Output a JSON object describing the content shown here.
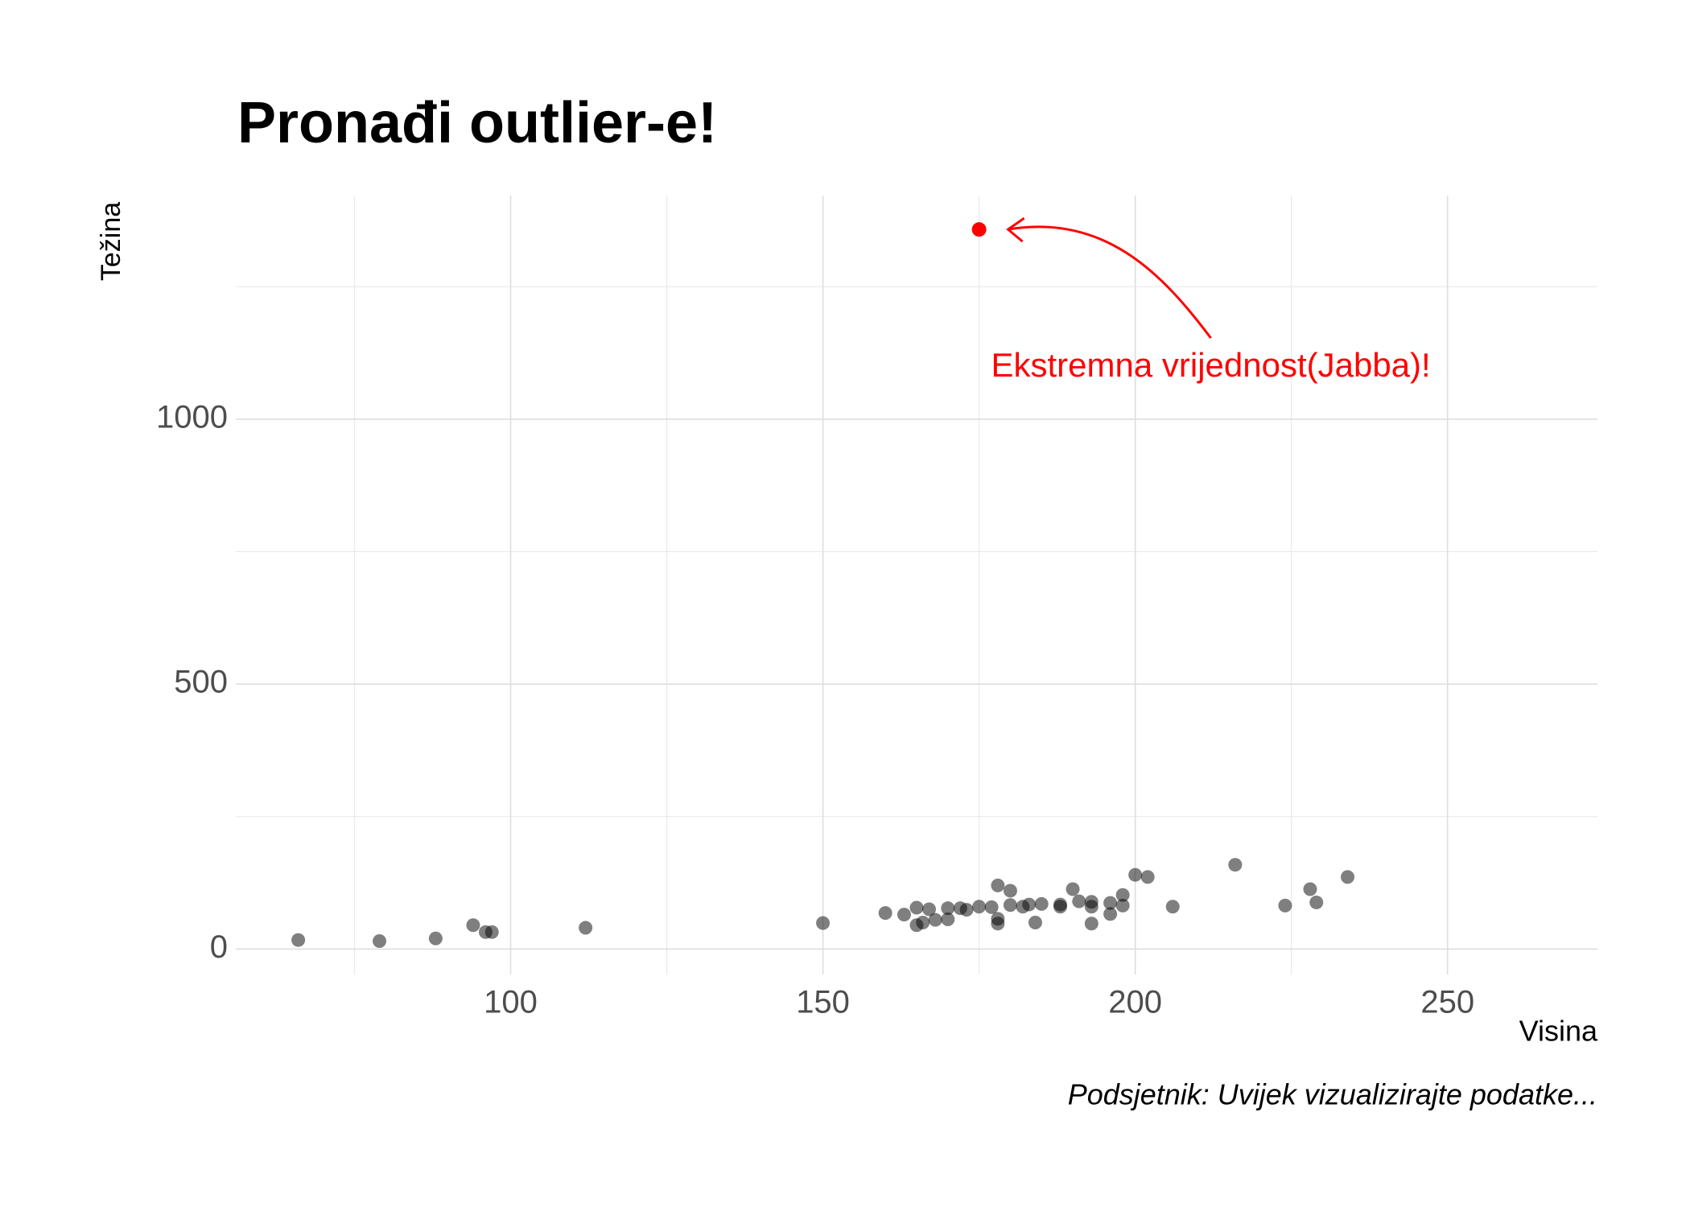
{
  "chart_data": {
    "type": "scatter",
    "title": "Pronađi outlier-e!",
    "x_label": "Visina",
    "y_label": "Težina",
    "caption": "Podsjetnik: Uvijek vizualizirajte podatke...",
    "x": [
      66,
      79,
      88,
      94,
      96,
      97,
      112,
      150,
      160,
      163,
      165,
      165,
      166,
      167,
      168,
      170,
      170,
      172,
      173,
      175,
      177,
      178,
      178,
      178,
      180,
      180,
      182,
      183,
      184,
      185,
      188,
      188,
      190,
      191,
      193,
      193,
      193,
      196,
      196,
      198,
      198,
      200,
      202,
      206,
      216,
      224,
      228,
      229,
      234
    ],
    "values": [
      17,
      15,
      20,
      45,
      32,
      32,
      40,
      49,
      68,
      65,
      78,
      45,
      50,
      75,
      55,
      77,
      56,
      77,
      74,
      80,
      79,
      120,
      57,
      48,
      110,
      83,
      80,
      84,
      50,
      85,
      84,
      80,
      113,
      90,
      80,
      48,
      89,
      66,
      87,
      82,
      102,
      140,
      136,
      80,
      159,
      82,
      113,
      88,
      136
    ],
    "color": "#000000",
    "highlight": {
      "x": 175,
      "value": 1358,
      "color": "#ff0000"
    },
    "annotation": {
      "text": "Ekstremna vrijednost(Jabba)!",
      "color": "#ff0000"
    },
    "xlim": [
      56,
      274
    ],
    "ylim": [
      -48,
      1422
    ],
    "xticks": [
      100,
      150,
      200,
      250
    ],
    "yticks": [
      0,
      500,
      1000
    ],
    "grid": true,
    "minor_grid": true
  }
}
